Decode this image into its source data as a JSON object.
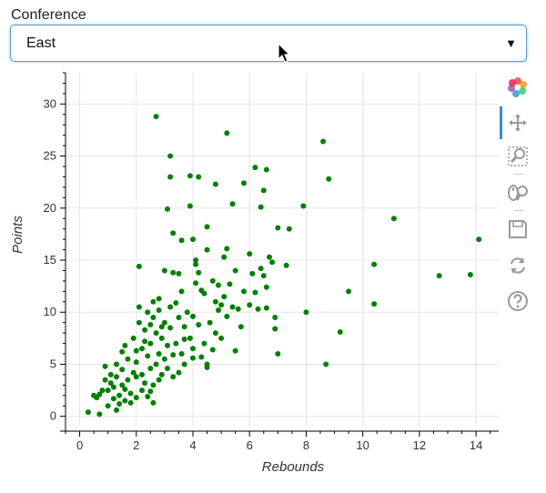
{
  "select": {
    "label": "Conference",
    "value": "East"
  },
  "toolbar": {
    "tools": [
      "bokeh-logo-icon",
      "pan-icon",
      "box-zoom-icon",
      "wheel-zoom-icon",
      "save-icon",
      "reset-icon",
      "help-icon"
    ],
    "active": "pan-icon"
  },
  "chart_data": {
    "type": "scatter",
    "xlabel": "Rebounds",
    "ylabel": "Points",
    "xlim": [
      -0.5,
      14.8
    ],
    "ylim": [
      -0.9,
      33
    ],
    "xticks": [
      0,
      2,
      4,
      6,
      8,
      10,
      12,
      14
    ],
    "yticks": [
      0,
      5,
      10,
      15,
      20,
      25,
      30
    ],
    "grid": true,
    "marker_color": "#008000",
    "points": [
      [
        0.3,
        0.4
      ],
      [
        0.5,
        2.0
      ],
      [
        0.6,
        1.8
      ],
      [
        0.7,
        0.2
      ],
      [
        0.7,
        2.1
      ],
      [
        0.8,
        2.5
      ],
      [
        0.9,
        3.5
      ],
      [
        0.9,
        4.8
      ],
      [
        1.0,
        1.0
      ],
      [
        1.0,
        2.5
      ],
      [
        1.1,
        3.2
      ],
      [
        1.1,
        4.0
      ],
      [
        1.2,
        1.7
      ],
      [
        1.2,
        2.8
      ],
      [
        1.3,
        3.8
      ],
      [
        1.3,
        5.0
      ],
      [
        1.4,
        1.2
      ],
      [
        1.4,
        2.0
      ],
      [
        1.5,
        3.0
      ],
      [
        1.5,
        4.5
      ],
      [
        1.5,
        6.2
      ],
      [
        1.6,
        1.5
      ],
      [
        1.6,
        2.6
      ],
      [
        1.7,
        3.5
      ],
      [
        1.7,
        5.5
      ],
      [
        1.8,
        1.3
      ],
      [
        1.8,
        2.2
      ],
      [
        1.9,
        4.2
      ],
      [
        1.9,
        7.5
      ],
      [
        2.0,
        1.8
      ],
      [
        2.0,
        3.8
      ],
      [
        2.0,
        5.2
      ],
      [
        2.1,
        9.0
      ],
      [
        2.1,
        10.5
      ],
      [
        2.2,
        2.5
      ],
      [
        2.2,
        4.0
      ],
      [
        2.2,
        6.5
      ],
      [
        2.3,
        3.2
      ],
      [
        2.3,
        8.3
      ],
      [
        2.4,
        1.9
      ],
      [
        2.4,
        5.8
      ],
      [
        2.4,
        10.0
      ],
      [
        2.5,
        2.4
      ],
      [
        2.5,
        4.6
      ],
      [
        2.5,
        7.0
      ],
      [
        2.6,
        3.0
      ],
      [
        2.6,
        9.5
      ],
      [
        2.6,
        11.0
      ],
      [
        2.7,
        5.0
      ],
      [
        2.7,
        8.0
      ],
      [
        2.8,
        3.5
      ],
      [
        2.8,
        6.0
      ],
      [
        2.8,
        10.2
      ],
      [
        2.9,
        4.0
      ],
      [
        2.9,
        7.5
      ],
      [
        3.0,
        5.5
      ],
      [
        3.0,
        9.0
      ],
      [
        3.0,
        14.0
      ],
      [
        3.1,
        4.6
      ],
      [
        3.1,
        6.8
      ],
      [
        3.2,
        8.5
      ],
      [
        3.2,
        10.5
      ],
      [
        3.3,
        3.8
      ],
      [
        3.3,
        5.9
      ],
      [
        3.3,
        13.8
      ],
      [
        3.4,
        7.0
      ],
      [
        3.5,
        4.2
      ],
      [
        3.5,
        9.5
      ],
      [
        3.6,
        6.0
      ],
      [
        3.6,
        12.0
      ],
      [
        3.7,
        5.0
      ],
      [
        3.7,
        8.6
      ],
      [
        3.8,
        10.0
      ],
      [
        3.9,
        7.5
      ],
      [
        4.0,
        6.5
      ],
      [
        4.0,
        9.6
      ],
      [
        4.1,
        15.0
      ],
      [
        4.1,
        12.8
      ],
      [
        4.2,
        13.8
      ],
      [
        4.2,
        8.8
      ],
      [
        4.3,
        5.7
      ],
      [
        4.4,
        11.8
      ],
      [
        4.4,
        7.0
      ],
      [
        4.5,
        16.0
      ],
      [
        4.5,
        4.7
      ],
      [
        4.6,
        9.0
      ],
      [
        4.7,
        13.0
      ],
      [
        4.7,
        6.4
      ],
      [
        4.8,
        11.0
      ],
      [
        4.8,
        8.0
      ],
      [
        4.9,
        10.2
      ],
      [
        4.9,
        12.6
      ],
      [
        5.0,
        7.5
      ],
      [
        5.0,
        10.7
      ],
      [
        5.1,
        11.5
      ],
      [
        5.1,
        15.3
      ],
      [
        5.2,
        9.6
      ],
      [
        5.3,
        12.7
      ],
      [
        5.4,
        10.5
      ],
      [
        5.5,
        6.3
      ],
      [
        5.6,
        10.3
      ],
      [
        5.7,
        8.6
      ],
      [
        5.8,
        12.0
      ],
      [
        6.0,
        10.7
      ],
      [
        6.0,
        15.6
      ],
      [
        6.1,
        13.7
      ],
      [
        6.2,
        11.9
      ],
      [
        6.3,
        10.3
      ],
      [
        6.4,
        14.2
      ],
      [
        6.5,
        13.5
      ],
      [
        6.6,
        12.4
      ],
      [
        6.6,
        10.4
      ],
      [
        6.7,
        15.3
      ],
      [
        6.8,
        14.8
      ],
      [
        6.9,
        9.5
      ],
      [
        6.9,
        8.4
      ],
      [
        7.0,
        6.0
      ],
      [
        7.3,
        14.5
      ],
      [
        7.4,
        18.0
      ],
      [
        7.9,
        20.2
      ],
      [
        8.0,
        10.0
      ],
      [
        8.6,
        26.4
      ],
      [
        8.7,
        5.0
      ],
      [
        8.8,
        22.8
      ],
      [
        9.2,
        8.1
      ],
      [
        9.5,
        12.0
      ],
      [
        10.4,
        14.6
      ],
      [
        10.4,
        10.8
      ],
      [
        11.1,
        19.0
      ],
      [
        12.7,
        13.5
      ],
      [
        13.8,
        13.6
      ],
      [
        14.1,
        17.0
      ],
      [
        2.7,
        28.8
      ],
      [
        3.2,
        25.0
      ],
      [
        5.2,
        27.2
      ],
      [
        3.2,
        23.0
      ],
      [
        3.9,
        23.1
      ],
      [
        4.2,
        23.0
      ],
      [
        4.8,
        22.3
      ],
      [
        5.4,
        20.4
      ],
      [
        5.8,
        22.4
      ],
      [
        6.2,
        23.9
      ],
      [
        6.6,
        23.7
      ],
      [
        6.5,
        21.7
      ],
      [
        6.4,
        20.1
      ],
      [
        7.0,
        18.1
      ],
      [
        3.1,
        19.9
      ],
      [
        3.9,
        20.2
      ],
      [
        4.5,
        18.2
      ],
      [
        3.3,
        17.6
      ],
      [
        4.0,
        17.0
      ],
      [
        5.2,
        16.1
      ],
      [
        5.5,
        14.0
      ],
      [
        2.1,
        14.4
      ],
      [
        3.6,
        16.9
      ],
      [
        4.1,
        14.6
      ],
      [
        3.5,
        13.7
      ],
      [
        2.8,
        11.3
      ],
      [
        3.4,
        10.9
      ],
      [
        4.3,
        12.1
      ],
      [
        2.5,
        8.8
      ],
      [
        2.9,
        8.6
      ],
      [
        1.6,
        6.8
      ],
      [
        2.0,
        6.3
      ],
      [
        2.3,
        7.2
      ],
      [
        3.7,
        7.4
      ],
      [
        4.0,
        5.6
      ],
      [
        4.5,
        5.0
      ],
      [
        1.3,
        0.6
      ],
      [
        2.6,
        1.3
      ]
    ]
  }
}
